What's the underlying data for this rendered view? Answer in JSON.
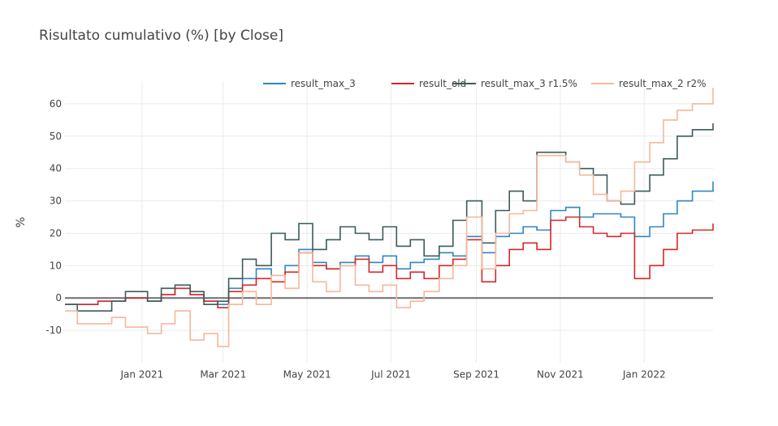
{
  "chart_data": {
    "type": "line",
    "title": "Risultato cumulativo (%) [by Close]",
    "xlabel": "",
    "ylabel": "%",
    "ylim": [
      -20,
      67
    ],
    "xlim": [
      "2020-11-06",
      "2022-02-20"
    ],
    "grid": true,
    "legend_position": "top-right",
    "x_ticks": [
      {
        "date": "2021-01-01",
        "label": "Jan 2021"
      },
      {
        "date": "2021-03-01",
        "label": "Mar 2021"
      },
      {
        "date": "2021-05-01",
        "label": "May 2021"
      },
      {
        "date": "2021-07-01",
        "label": "Jul 2021"
      },
      {
        "date": "2021-09-01",
        "label": "Sep 2021"
      },
      {
        "date": "2021-11-01",
        "label": "Nov 2021"
      },
      {
        "date": "2022-01-01",
        "label": "Jan 2022"
      }
    ],
    "y_ticks": [
      -10,
      0,
      10,
      20,
      30,
      40,
      50,
      60
    ],
    "series": [
      {
        "name": "result_max_3",
        "color": "#2e86c1",
        "x": [
          "2020-11-06",
          "2020-11-15",
          "2020-11-30",
          "2020-12-10",
          "2020-12-20",
          "2021-01-05",
          "2021-01-15",
          "2021-01-25",
          "2021-02-05",
          "2021-02-15",
          "2021-02-25",
          "2021-03-05",
          "2021-03-15",
          "2021-03-25",
          "2021-04-05",
          "2021-04-15",
          "2021-04-25",
          "2021-05-05",
          "2021-05-15",
          "2021-05-25",
          "2021-06-05",
          "2021-06-15",
          "2021-06-25",
          "2021-07-05",
          "2021-07-15",
          "2021-07-25",
          "2021-08-05",
          "2021-08-15",
          "2021-08-25",
          "2021-09-05",
          "2021-09-15",
          "2021-09-25",
          "2021-10-05",
          "2021-10-15",
          "2021-10-25",
          "2021-11-05",
          "2021-11-15",
          "2021-11-25",
          "2021-12-05",
          "2021-12-15",
          "2021-12-25",
          "2022-01-05",
          "2022-01-15",
          "2022-01-25",
          "2022-02-05",
          "2022-02-20"
        ],
        "y": [
          -2,
          -2,
          -1,
          -1,
          0,
          -1,
          1,
          3,
          1,
          -1,
          -2,
          3,
          6,
          9,
          7,
          10,
          15,
          11,
          9,
          11,
          13,
          11,
          13,
          9,
          11,
          12,
          14,
          13,
          19,
          14,
          19,
          20,
          22,
          21,
          27,
          28,
          25,
          26,
          26,
          25,
          19,
          22,
          26,
          30,
          33,
          36
        ]
      },
      {
        "name": "result_old",
        "color": "#d62728",
        "x": [
          "2020-11-06",
          "2020-11-15",
          "2020-11-30",
          "2020-12-10",
          "2020-12-20",
          "2021-01-05",
          "2021-01-15",
          "2021-01-25",
          "2021-02-05",
          "2021-02-15",
          "2021-02-25",
          "2021-03-05",
          "2021-03-15",
          "2021-03-25",
          "2021-04-05",
          "2021-04-15",
          "2021-04-25",
          "2021-05-05",
          "2021-05-15",
          "2021-05-25",
          "2021-06-05",
          "2021-06-15",
          "2021-06-25",
          "2021-07-05",
          "2021-07-15",
          "2021-07-25",
          "2021-08-05",
          "2021-08-15",
          "2021-08-25",
          "2021-09-05",
          "2021-09-15",
          "2021-09-25",
          "2021-10-05",
          "2021-10-15",
          "2021-10-25",
          "2021-11-05",
          "2021-11-15",
          "2021-11-25",
          "2021-12-05",
          "2021-12-15",
          "2021-12-25",
          "2022-01-05",
          "2022-01-15",
          "2022-01-25",
          "2022-02-05",
          "2022-02-20"
        ],
        "y": [
          -2,
          -2,
          -1,
          -1,
          0,
          -1,
          1,
          3,
          1,
          -1,
          -3,
          2,
          4,
          6,
          5,
          8,
          14,
          10,
          9,
          10,
          12,
          8,
          10,
          6,
          8,
          6,
          10,
          12,
          18,
          5,
          10,
          15,
          17,
          15,
          24,
          25,
          22,
          20,
          19,
          20,
          6,
          10,
          15,
          20,
          21,
          23
        ]
      },
      {
        "name": "result_max_3 r1.5%",
        "color": "#3d5a5a",
        "x": [
          "2020-11-06",
          "2020-11-15",
          "2020-11-30",
          "2020-12-10",
          "2020-12-20",
          "2021-01-05",
          "2021-01-15",
          "2021-01-25",
          "2021-02-05",
          "2021-02-15",
          "2021-02-25",
          "2021-03-05",
          "2021-03-15",
          "2021-03-25",
          "2021-04-05",
          "2021-04-15",
          "2021-04-25",
          "2021-05-05",
          "2021-05-15",
          "2021-05-25",
          "2021-06-05",
          "2021-06-15",
          "2021-06-25",
          "2021-07-05",
          "2021-07-15",
          "2021-07-25",
          "2021-08-05",
          "2021-08-15",
          "2021-08-25",
          "2021-09-05",
          "2021-09-15",
          "2021-09-25",
          "2021-10-05",
          "2021-10-15",
          "2021-10-25",
          "2021-11-05",
          "2021-11-15",
          "2021-11-25",
          "2021-12-05",
          "2021-12-15",
          "2021-12-25",
          "2022-01-05",
          "2022-01-15",
          "2022-01-25",
          "2022-02-05",
          "2022-02-20"
        ],
        "y": [
          -2,
          -4,
          -4,
          -1,
          2,
          -1,
          3,
          4,
          2,
          -2,
          -1,
          6,
          12,
          10,
          20,
          18,
          23,
          15,
          18,
          22,
          20,
          18,
          22,
          16,
          18,
          13,
          16,
          24,
          30,
          17,
          27,
          33,
          30,
          45,
          45,
          42,
          40,
          38,
          30,
          29,
          33,
          38,
          43,
          50,
          52,
          54
        ]
      },
      {
        "name": "result_max_2 r2%",
        "color": "#f4b89a",
        "x": [
          "2020-11-06",
          "2020-11-15",
          "2020-11-30",
          "2020-12-10",
          "2020-12-20",
          "2021-01-05",
          "2021-01-15",
          "2021-01-25",
          "2021-02-05",
          "2021-02-15",
          "2021-02-25",
          "2021-03-05",
          "2021-03-15",
          "2021-03-25",
          "2021-04-05",
          "2021-04-15",
          "2021-04-25",
          "2021-05-05",
          "2021-05-15",
          "2021-05-25",
          "2021-06-05",
          "2021-06-15",
          "2021-06-25",
          "2021-07-05",
          "2021-07-15",
          "2021-07-25",
          "2021-08-05",
          "2021-08-15",
          "2021-08-25",
          "2021-09-05",
          "2021-09-15",
          "2021-09-25",
          "2021-10-05",
          "2021-10-15",
          "2021-10-25",
          "2021-11-05",
          "2021-11-15",
          "2021-11-25",
          "2021-12-05",
          "2021-12-15",
          "2021-12-25",
          "2022-01-05",
          "2022-01-15",
          "2022-01-25",
          "2022-02-05",
          "2022-02-20"
        ],
        "y": [
          -4,
          -8,
          -8,
          -6,
          -9,
          -11,
          -8,
          -4,
          -13,
          -11,
          -15,
          -2,
          2,
          -2,
          7,
          3,
          14,
          5,
          2,
          10,
          4,
          2,
          4,
          -3,
          -1,
          2,
          6,
          10,
          25,
          9,
          20,
          26,
          27,
          44,
          44,
          42,
          38,
          32,
          30,
          33,
          42,
          48,
          55,
          58,
          60,
          65
        ]
      }
    ]
  }
}
